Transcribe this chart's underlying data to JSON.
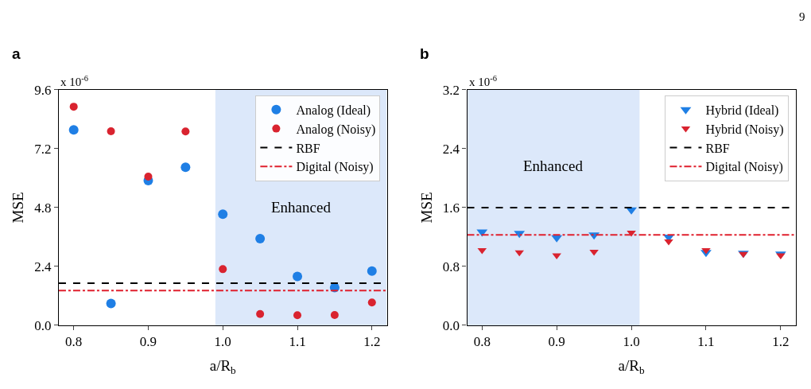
{
  "chart_data": [
    {
      "type": "scatter",
      "title": "a",
      "xlabel": "a/R$_{b}$",
      "ylabel": "MSE",
      "x": [
        0.8,
        0.85,
        0.9,
        0.95,
        1.0,
        1.05,
        1.1,
        1.15,
        1.2
      ],
      "series": [
        {
          "name": "Analog (Ideal)",
          "color": "#1f7fe5",
          "values": [
            7.97,
            0.89,
            5.9,
            6.44,
            4.53,
            3.53,
            1.99,
            1.54,
            2.21
          ]
        },
        {
          "name": "Analog (Noisy)",
          "color": "#d9232f",
          "values": [
            8.91,
            7.91,
            6.06,
            7.9,
            2.29,
            0.46,
            0.41,
            0.42,
            0.93
          ]
        }
      ],
      "ref_lines": [
        {
          "axis": "y",
          "value": 1.72,
          "label": "RBF",
          "color": "#000000",
          "line_style": "dashed"
        },
        {
          "axis": "y",
          "value": 1.42,
          "label": "Digital (Noisy)",
          "color": "#e0202e",
          "line_style": "dashdot"
        }
      ],
      "bands": [
        {
          "axis": "x",
          "from": 0.99,
          "to": 1.22,
          "color": "#dce8fa",
          "label": "Enhanced"
        }
      ],
      "annotations": [
        "x 10$^{-6}$"
      ],
      "xlim": [
        0.78,
        1.22
      ],
      "ylim": [
        0,
        9.6
      ],
      "xticks": [
        0.8,
        0.9,
        {
          "value": 1.0,
          "label": "1.0"
        },
        1.1,
        1.2
      ],
      "yticks": [
        {
          "value": 0,
          "label": "0.0"
        },
        2.4,
        4.8,
        7.2,
        9.6
      ],
      "marker": "circle",
      "legend": "top right",
      "grid": false
    },
    {
      "type": "scatter",
      "title": "b",
      "xlabel": "a/R$_{b}$",
      "ylabel": "MSE",
      "x": [
        0.8,
        0.85,
        0.9,
        0.95,
        1.0,
        1.05,
        1.1,
        1.15,
        1.2
      ],
      "series": [
        {
          "name": "Hybrid (Ideal)",
          "color": "#1f7fe5",
          "values": [
            1.27,
            1.25,
            1.19,
            1.23,
            1.57,
            1.2,
            0.99,
            0.98,
            0.97
          ]
        },
        {
          "name": "Hybrid (Noisy)",
          "color": "#d9232f",
          "values": [
            1.02,
            0.99,
            0.95,
            1.0,
            1.26,
            1.14,
            1.02,
            0.97,
            0.95
          ]
        }
      ],
      "ref_lines": [
        {
          "axis": "y",
          "value": 1.6,
          "label": "RBF",
          "color": "#000000",
          "line_style": "dashed"
        },
        {
          "axis": "y",
          "value": 1.23,
          "label": "Digital (Noisy)",
          "color": "#e0202e",
          "line_style": "dashdot"
        }
      ],
      "bands": [
        {
          "axis": "x",
          "from": 0.78,
          "to": 1.011,
          "color": "#dce8fa",
          "label": "Enhanced"
        }
      ],
      "annotations": [
        "x 10$^{-6}$",
        "9"
      ],
      "xlim": [
        0.78,
        1.22
      ],
      "ylim": [
        0,
        3.2
      ],
      "xticks": [
        0.8,
        0.9,
        {
          "value": 1.0,
          "label": "1.0"
        },
        1.1,
        1.2
      ],
      "yticks": [
        {
          "value": 0,
          "label": "0.0"
        },
        0.8,
        1.6,
        2.4,
        3.2
      ],
      "marker": "triangle",
      "legend": "top right",
      "grid": false
    }
  ]
}
